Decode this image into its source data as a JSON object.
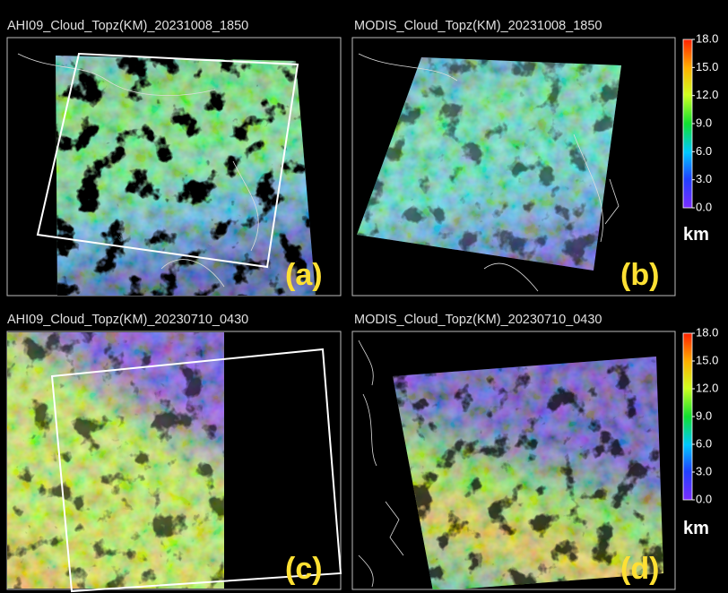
{
  "panels": [
    {
      "title": "AHI09_Cloud_Topz(KM)_20231008_1850",
      "label": "(a)"
    },
    {
      "title": "MODIS_Cloud_Topz(KM)_20231008_1850",
      "label": "(b)"
    },
    {
      "title": "AHI09_Cloud_Topz(KM)_20230710_0430",
      "label": "(c)"
    },
    {
      "title": "MODIS_Cloud_Topz(KM)_20230710_0430",
      "label": "(d)"
    }
  ],
  "colorbars": [
    {
      "range": [
        0,
        18
      ],
      "unit": "km",
      "ticks": [
        {
          "value": 0,
          "label": "0.0"
        },
        {
          "value": 3,
          "label": "3.0"
        },
        {
          "value": 6,
          "label": "6.0"
        },
        {
          "value": 9,
          "label": "9.0"
        },
        {
          "value": 12,
          "label": "12.0"
        },
        {
          "value": 15,
          "label": "15.0"
        },
        {
          "value": 18,
          "label": "18.0"
        }
      ]
    },
    {
      "range": [
        0,
        18
      ],
      "unit": "km",
      "ticks": [
        {
          "value": 0,
          "label": "0.0"
        },
        {
          "value": 3,
          "label": "3.0"
        },
        {
          "value": 6,
          "label": "6.0"
        },
        {
          "value": 9,
          "label": "9.0"
        },
        {
          "value": 12,
          "label": "12.0"
        },
        {
          "value": 15,
          "label": "15.0"
        },
        {
          "value": 18,
          "label": "18.0"
        }
      ]
    }
  ]
}
